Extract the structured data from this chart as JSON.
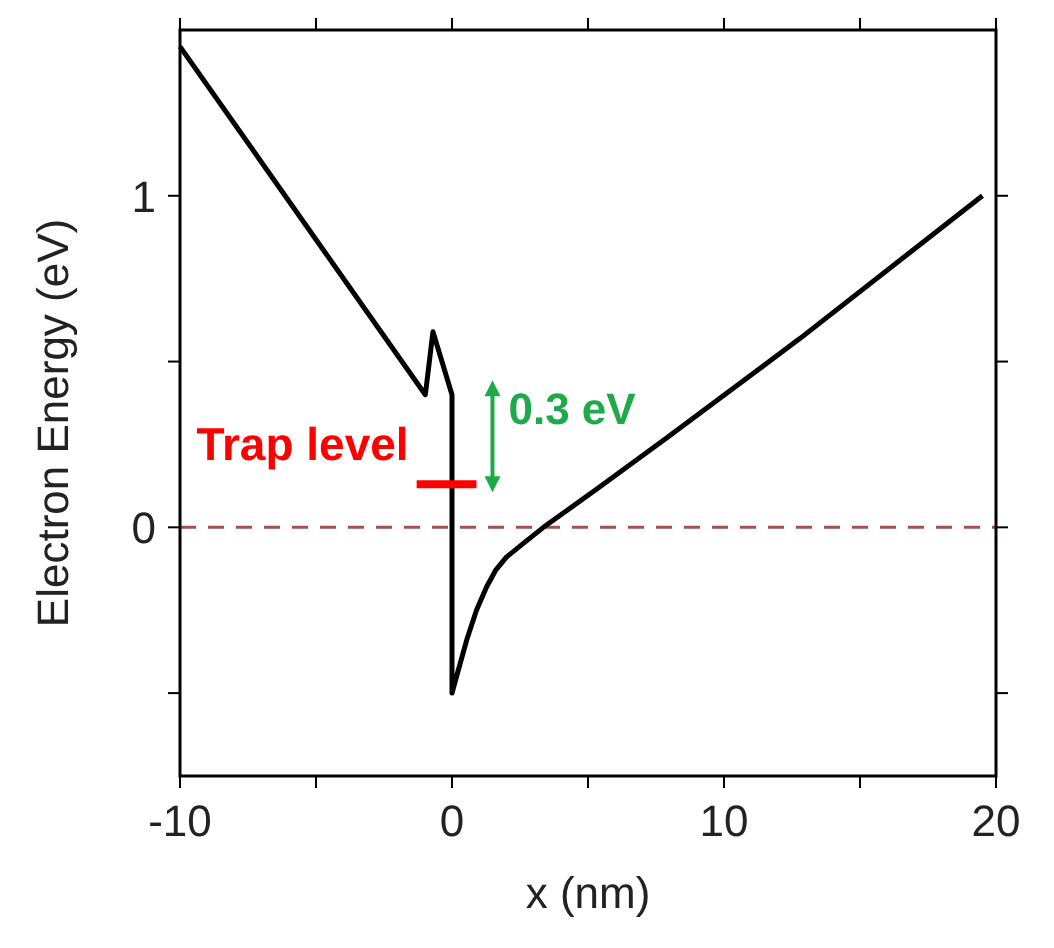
{
  "chart_data": {
    "type": "line",
    "xlabel": "x (nm)",
    "ylabel": "Electron Energy (eV)",
    "xlim": [
      -10,
      20
    ],
    "ylim": [
      -0.75,
      1.5
    ],
    "xticks": [
      -10,
      {
        "value": -5,
        "label": null
      },
      0,
      {
        "value": 5,
        "label": null
      },
      10,
      {
        "value": 15,
        "label": null
      },
      20
    ],
    "yticks": [
      {
        "value": -0.5,
        "label": null
      },
      0,
      {
        "value": 0.5,
        "label": null
      },
      1
    ],
    "series": [
      {
        "color": "#000000",
        "x": [
          -10,
          -0.98,
          -0.7,
          0,
          0,
          0.2,
          0.54,
          0.9,
          1.27,
          1.6,
          2.0,
          2.6,
          3.36,
          5.4,
          7.9,
          12.8,
          19.5
        ],
        "values": [
          1.45,
          0.4,
          0.59,
          0.4,
          -0.5,
          -0.44,
          -0.34,
          -0.25,
          -0.18,
          -0.13,
          -0.09,
          -0.05,
          0,
          0.12,
          0.27,
          0.57,
          1.0
        ]
      },
      {
        "name": "Trap level",
        "color": "#ff0000",
        "x": [
          -1.3,
          0.9
        ],
        "values": [
          0.13,
          0.13
        ]
      }
    ],
    "ref_lines": [
      {
        "axis": "y",
        "value": 0,
        "color": "#a05050",
        "line_style": "dashed"
      }
    ],
    "annotations": [
      "0.3 eV"
    ],
    "grid": false
  }
}
